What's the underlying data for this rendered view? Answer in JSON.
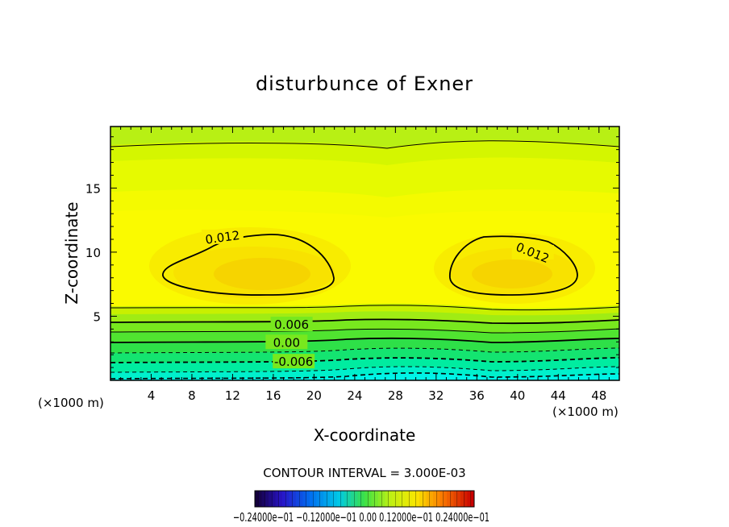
{
  "chart_data": {
    "type": "contour",
    "title": "disturbunce of Exner",
    "xlabel": "X-coordinate",
    "ylabel": "Z-coordinate",
    "x_unit_left": "(×1000 m)",
    "x_unit_right": "(×1000 m)",
    "xlim": [
      0,
      50
    ],
    "ylim": [
      0,
      19.8
    ],
    "x_ticks": [
      4,
      8,
      12,
      16,
      20,
      24,
      28,
      32,
      36,
      40,
      44,
      48
    ],
    "y_ticks": [
      5,
      10,
      15
    ],
    "contour_interval_text": "CONTOUR INTERVAL = 3.000E-03",
    "contour_labels": [
      {
        "text": "0.012",
        "x": 11,
        "y": 11.2
      },
      {
        "text": "0.012",
        "x": 41.5,
        "y": 10.0
      },
      {
        "text": "0.006",
        "x": 17.8,
        "y": 4.4
      },
      {
        "text": "0.00",
        "x": 17.3,
        "y": 3.0
      },
      {
        "text": "-0.006",
        "x": 18.0,
        "y": 1.5
      }
    ],
    "colorbar_labels": "−0.24000e−01 −0.12000e−01 0.00 0.12000e−01 0.24000e−01",
    "colors": {
      "upper_green_yellow": "#b8f014",
      "yellow_green": "#dcf800",
      "yellow": "#f8fa00",
      "gold": "#f8e000",
      "max_core": "#f6d400",
      "green": "#4ce832",
      "cyan": "#00f0c8"
    }
  }
}
